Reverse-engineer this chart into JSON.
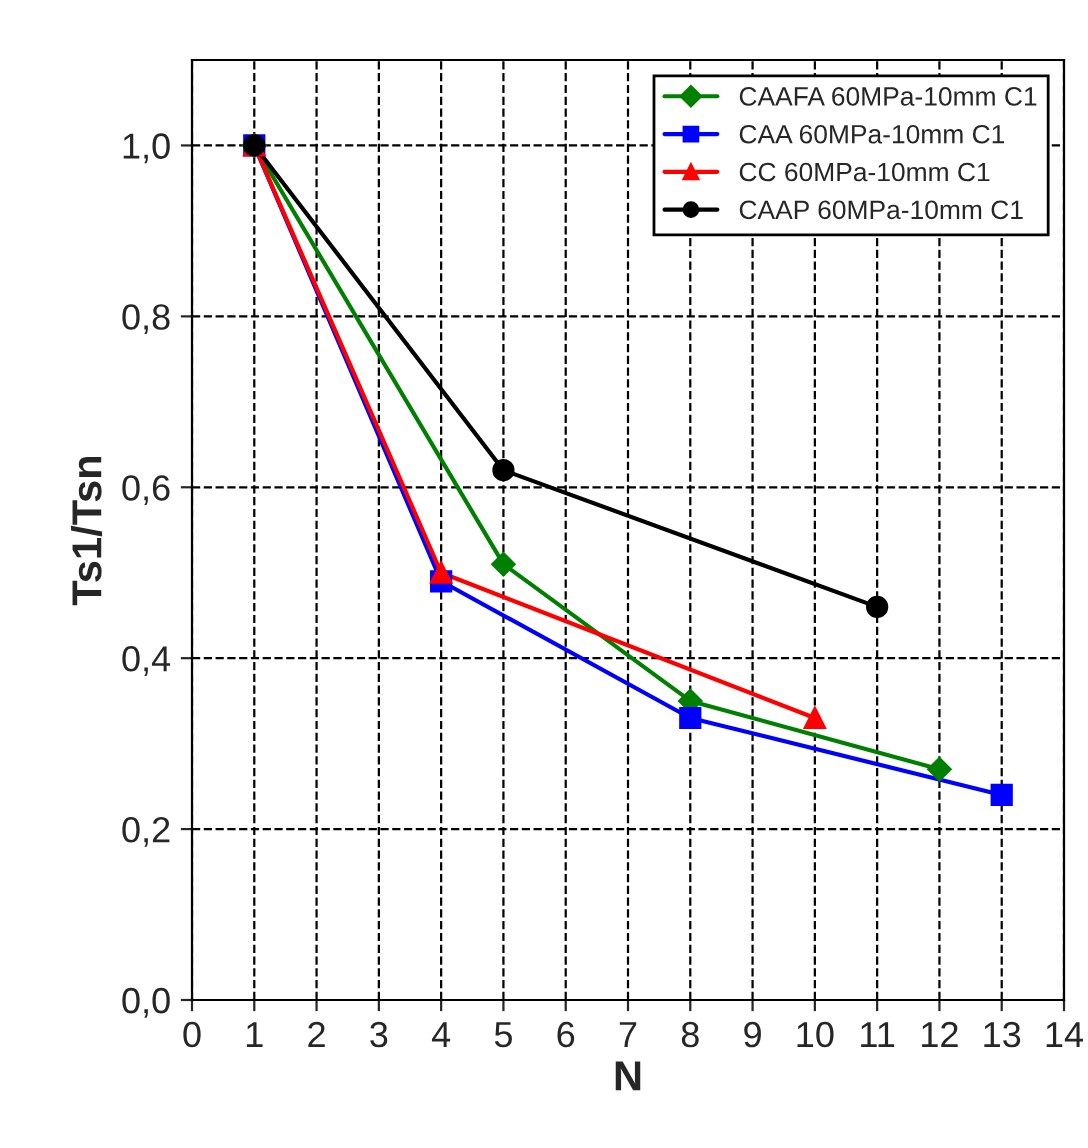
{
  "chart_data": {
    "type": "line",
    "xlabel": "N",
    "ylabel": "Ts1/Tsn",
    "series": [
      {
        "name": "CAAFA 60MPa-10mm C1",
        "color": "#008000",
        "marker": "diamond",
        "x": [
          1,
          5,
          8,
          12
        ],
        "values": [
          1.0,
          0.51,
          0.35,
          0.27
        ]
      },
      {
        "name": "CAA 60MPa-10mm C1",
        "color": "#0000ff",
        "marker": "square",
        "x": [
          1,
          4,
          8,
          13
        ],
        "values": [
          1.0,
          0.49,
          0.33,
          0.24
        ]
      },
      {
        "name": "CC 60MPa-10mm C1",
        "color": "#ff0000",
        "marker": "triangle",
        "x": [
          1,
          4,
          10
        ],
        "values": [
          1.0,
          0.5,
          0.33
        ]
      },
      {
        "name": "CAAP 60MPa-10mm C1",
        "color": "#000000",
        "marker": "circle",
        "x": [
          1,
          5,
          11
        ],
        "values": [
          1.0,
          0.62,
          0.46
        ]
      }
    ],
    "xlim": [
      0,
      14
    ],
    "xticks": [
      0,
      1,
      2,
      3,
      4,
      5,
      6,
      7,
      8,
      9,
      10,
      11,
      12,
      13,
      14
    ],
    "ylim": [
      0,
      1.1
    ],
    "yticks": [
      {
        "value": 0,
        "label": "0,0"
      },
      {
        "value": 0.2,
        "label": "0,2"
      },
      {
        "value": 0.4,
        "label": "0,4"
      },
      {
        "value": 0.6,
        "label": "0,6"
      },
      {
        "value": 0.8,
        "label": "0,8"
      },
      {
        "value": 1.0,
        "label": "1,0"
      }
    ],
    "grid": true,
    "legend": "top right",
    "line_style": "solid"
  }
}
